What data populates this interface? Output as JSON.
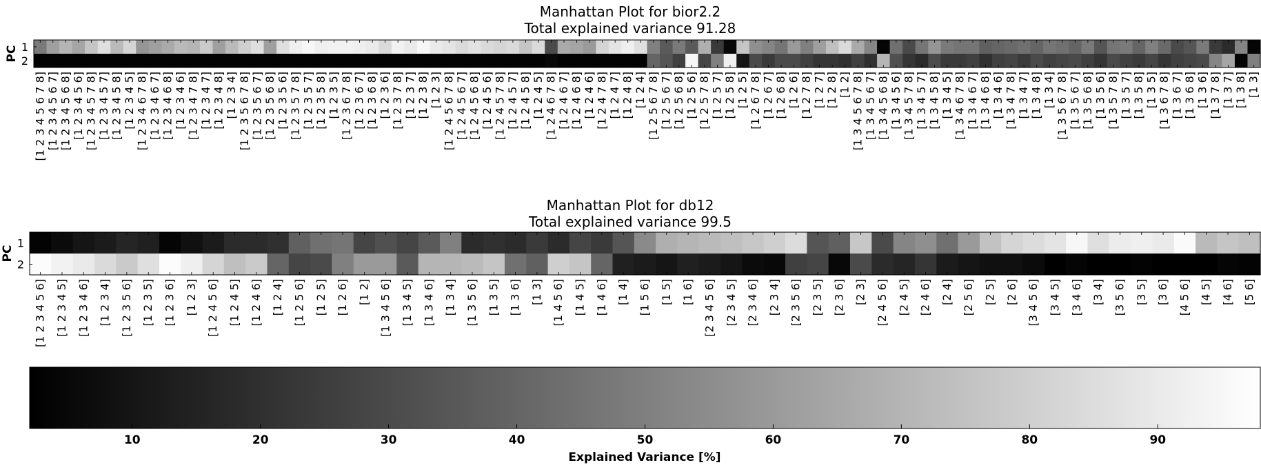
{
  "chart_data": [
    {
      "type": "heatmap",
      "title": "Manhattan Plot for bior2.2",
      "subtitle": "Total explained variance 91.28",
      "ylabel": "PC",
      "rows": [
        "1",
        "2"
      ],
      "categories": [
        "[1 2 3 4 5 6 7 8]",
        "[1 2 3 4 5 6 7]",
        "[1 2 3 4 5 6 8]",
        "[1 2 3 4 5 6]",
        "[1 2 3 4 5 7 8]",
        "[1 2 3 4 5 7]",
        "[1 2 3 4 5 8]",
        "[1 2 3 4 5]",
        "[1 2 3 4 6 7 8]",
        "[1 2 3 4 6 7]",
        "[1 2 3 4 6 8]",
        "[1 2 3 4 6]",
        "[1 2 3 4 7 8]",
        "[1 2 3 4 7]",
        "[1 2 3 4 8]",
        "[1 2 3 4]",
        "[1 2 3 5 6 7 8]",
        "[1 2 3 5 6 7]",
        "[1 2 3 5 6 8]",
        "[1 2 3 5 6]",
        "[1 2 3 5 7 8]",
        "[1 2 3 5 7]",
        "[1 2 3 5 8]",
        "[1 2 3 5]",
        "[1 2 3 6 7 8]",
        "[1 2 3 6 7]",
        "[1 2 3 6 8]",
        "[1 2 3 6]",
        "[1 2 3 7 8]",
        "[1 2 3 7]",
        "[1 2 3 8]",
        "[1 2 3]",
        "[1 2 4 5 6 7 8]",
        "[1 2 4 5 6 7]",
        "[1 2 4 5 6 8]",
        "[1 2 4 5 6]",
        "[1 2 4 5 7 8]",
        "[1 2 4 5 7]",
        "[1 2 4 5 8]",
        "[1 2 4 5]",
        "[1 2 4 6 7 8]",
        "[1 2 4 6 7]",
        "[1 2 4 6 8]",
        "[1 2 4 6]",
        "[1 2 4 7 8]",
        "[1 2 4 7]",
        "[1 2 4 8]",
        "[1 2 4]",
        "[1 2 5 6 7 8]",
        "[1 2 5 6 7]",
        "[1 2 5 6 8]",
        "[1 2 5 6]",
        "[1 2 5 7 8]",
        "[1 2 5 7]",
        "[1 2 5 8]",
        "[1 2 5]",
        "[1 2 6 7 8]",
        "[1 2 6 7]",
        "[1 2 6 8]",
        "[1 2 6]",
        "[1 2 7 8]",
        "[1 2 7]",
        "[1 2 8]",
        "[1 2]",
        "[1 3 4 5 6 7 8]",
        "[1 3 4 5 6 7]",
        "[1 3 4 5 6 8]",
        "[1 3 4 5 6]",
        "[1 3 4 5 7 8]",
        "[1 3 4 5 7]",
        "[1 3 4 5 8]",
        "[1 3 4 5]",
        "[1 3 4 6 7 8]",
        "[1 3 4 6 7]",
        "[1 3 4 6 8]",
        "[1 3 4 6]",
        "[1 3 4 7 8]",
        "[1 3 4 7]",
        "[1 3 4 8]",
        "[1 3 4]",
        "[1 3 5 6 7 8]",
        "[1 3 5 6 7]",
        "[1 3 5 6 8]",
        "[1 3 5 6]",
        "[1 3 5 7 8]",
        "[1 3 5 7]",
        "[1 3 5 8]",
        "[1 3 5]",
        "[1 3 6 7 8]",
        "[1 3 6 7]",
        "[1 3 6 8]",
        "[1 3 6]",
        "[1 3 7 8]",
        "[1 3 7]",
        "[1 3 8]",
        "[1 3]"
      ],
      "values": [
        [
          48,
          62,
          70,
          64,
          76,
          86,
          72,
          82,
          58,
          62,
          66,
          72,
          70,
          78,
          62,
          72,
          80,
          86,
          62,
          86,
          92,
          95,
          92,
          93,
          93,
          92,
          90,
          84,
          93,
          90,
          95,
          90,
          88,
          84,
          87,
          84,
          82,
          84,
          76,
          84,
          30,
          66,
          64,
          60,
          82,
          88,
          92,
          86,
          50,
          36,
          48,
          36,
          68,
          24,
          5,
          76,
          56,
          52,
          46,
          60,
          50,
          62,
          74,
          84,
          66,
          52,
          4,
          44,
          30,
          46,
          58,
          48,
          46,
          46,
          38,
          40,
          42,
          44,
          40,
          46,
          44,
          40,
          48,
          34,
          46,
          48,
          40,
          50,
          42,
          30,
          34,
          48,
          24,
          18,
          52,
          4
        ],
        [
          3,
          3,
          3,
          3,
          3,
          3,
          3,
          3,
          3,
          3,
          3,
          3,
          3,
          3,
          3,
          3,
          3,
          3,
          3,
          3,
          3,
          3,
          3,
          3,
          3,
          3,
          3,
          3,
          3,
          3,
          3,
          3,
          3,
          3,
          3,
          3,
          3,
          3,
          3,
          3,
          5,
          3,
          3,
          3,
          3,
          3,
          3,
          3,
          40,
          34,
          26,
          95,
          28,
          50,
          92,
          10,
          30,
          24,
          30,
          30,
          26,
          22,
          22,
          20,
          26,
          20,
          70,
          32,
          22,
          18,
          30,
          24,
          24,
          26,
          20,
          26,
          28,
          24,
          30,
          26,
          28,
          30,
          26,
          22,
          30,
          26,
          24,
          28,
          22,
          26,
          28,
          30,
          52,
          64,
          4,
          50
        ]
      ],
      "range": [
        2,
        98
      ]
    },
    {
      "type": "heatmap",
      "title": "Manhattan Plot for db12",
      "subtitle": "Total explained variance 99.5",
      "ylabel": "PC",
      "rows": [
        "1",
        "2"
      ],
      "categories": [
        "[1 2 3 4 5 6]",
        "[1 2 3 4 5]",
        "[1 2 3 4 6]",
        "[1 2 3 4]",
        "[1 2 3 5 6]",
        "[1 2 3 5]",
        "[1 2 3 6]",
        "[1 2 3]",
        "[1 2 4 5 6]",
        "[1 2 4 5]",
        "[1 2 4 6]",
        "[1 2 4]",
        "[1 2 5 6]",
        "[1 2 5]",
        "[1 2 6]",
        "[1 2]",
        "[1 3 4 5 6]",
        "[1 3 4 5]",
        "[1 3 4 6]",
        "[1 3 4]",
        "[1 3 5 6]",
        "[1 3 5]",
        "[1 3 6]",
        "[1 3]",
        "[1 4 5 6]",
        "[1 4 5]",
        "[1 4 6]",
        "[1 4]",
        "[1 5 6]",
        "[1 5]",
        "[1 6]",
        "[2 3 4 5 6]",
        "[2 3 4 5]",
        "[2 3 4 6]",
        "[2 3 4]",
        "[2 3 5 6]",
        "[2 3 5]",
        "[2 3 6]",
        "[2 3]",
        "[2 4 5 6]",
        "[2 4 5]",
        "[2 4 6]",
        "[2 4]",
        "[2 5 6]",
        "[2 5]",
        "[2 6]",
        "[3 4 5 6]",
        "[3 4 5]",
        "[3 4 6]",
        "[3 4]",
        "[3 5 6]",
        "[3 5]",
        "[3 6]",
        "[4 5 6]",
        "[4 5]",
        "[4 6]",
        "[5 6]"
      ],
      "values": [
        [
          3,
          6,
          10,
          12,
          16,
          14,
          4,
          8,
          12,
          18,
          18,
          20,
          38,
          44,
          46,
          28,
          32,
          28,
          36,
          50,
          18,
          20,
          18,
          24,
          18,
          28,
          24,
          34,
          54,
          68,
          70,
          72,
          74,
          77,
          80,
          85,
          34,
          38,
          77,
          30,
          52,
          56,
          44,
          60,
          75,
          82,
          85,
          88,
          95,
          86,
          91,
          92,
          90,
          96,
          72,
          76,
          74
        ],
        [
          97,
          93,
          90,
          84,
          78,
          86,
          97,
          92,
          82,
          74,
          78,
          40,
          28,
          30,
          50,
          60,
          60,
          36,
          70,
          70,
          72,
          76,
          44,
          38,
          80,
          76,
          40,
          14,
          12,
          10,
          14,
          12,
          10,
          6,
          5,
          26,
          28,
          5,
          30,
          18,
          16,
          22,
          12,
          10,
          8,
          8,
          6,
          2,
          4,
          2,
          2,
          3,
          2,
          2,
          2,
          4,
          3
        ]
      ],
      "range": [
        2,
        98
      ]
    }
  ],
  "colorbar": {
    "label": "Explained Variance [%]",
    "min": 2,
    "max": 98,
    "ticks": [
      "10",
      "20",
      "30",
      "40",
      "50",
      "60",
      "70",
      "80",
      "90"
    ],
    "colormap": "gray",
    "color_low": "#000000",
    "color_high": "#ffffff"
  }
}
